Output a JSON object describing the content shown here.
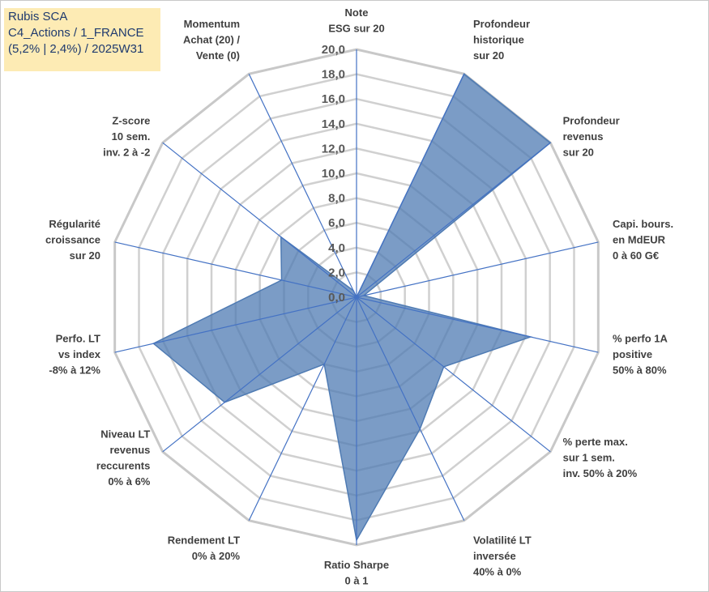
{
  "title": {
    "line1": "Rubis SCA",
    "line2": "C4_Actions / 1_FRANCE",
    "line3": "(5,2% | 2,4%) / 2025W31"
  },
  "chart_data": {
    "type": "radar",
    "rmin": 0,
    "rmax": 20,
    "tick_step": 2,
    "tick_labels": [
      "0,0",
      "2,0",
      "4,0",
      "6,0",
      "8,0",
      "10,0",
      "12,0",
      "14,0",
      "16,0",
      "18,0",
      "20,0"
    ],
    "grid": true,
    "axes": [
      [
        "Note",
        "ESG sur 20"
      ],
      [
        "Profondeur",
        "historique",
        "sur 20"
      ],
      [
        "Profondeur",
        "revenus",
        "sur 20"
      ],
      [
        "Capi. bours.",
        "en MdEUR",
        "0 à 60 G€"
      ],
      [
        "% perfo 1A",
        "positive",
        "50% à 80%"
      ],
      [
        "% perte max.",
        "sur 1 sem.",
        "inv. 50% à 20%"
      ],
      [
        "Volatilité LT",
        "inversée",
        "40% à 0%"
      ],
      [
        "Ratio Sharpe",
        "0 à 1"
      ],
      [
        "Rendement LT",
        "0% à 20%"
      ],
      [
        "Niveau LT",
        "revenus",
        "reccurents",
        "0% à 6%"
      ],
      [
        "Perfo. LT",
        "vs index",
        "-8% à 12%"
      ],
      [
        "Régularité",
        "croissance",
        "sur 20"
      ],
      [
        "Z-score",
        "10 sem.",
        "inv. 2 à -2"
      ],
      [
        "Momentum",
        "Achat (20) /",
        "Vente (0)"
      ]
    ],
    "series": [
      {
        "values": [
          0,
          20,
          20,
          0.6,
          14.4,
          9.0,
          11.8,
          19.6,
          6.0,
          13.6,
          16.8,
          6.2,
          7.8,
          0.6
        ],
        "color": "#4f7bb3"
      }
    ],
    "colors": {
      "fill": "#4f7bb3",
      "axis_line": "#4472c4",
      "grid": "#d0d0d0",
      "outer_grid": "#c8c8c8"
    }
  }
}
